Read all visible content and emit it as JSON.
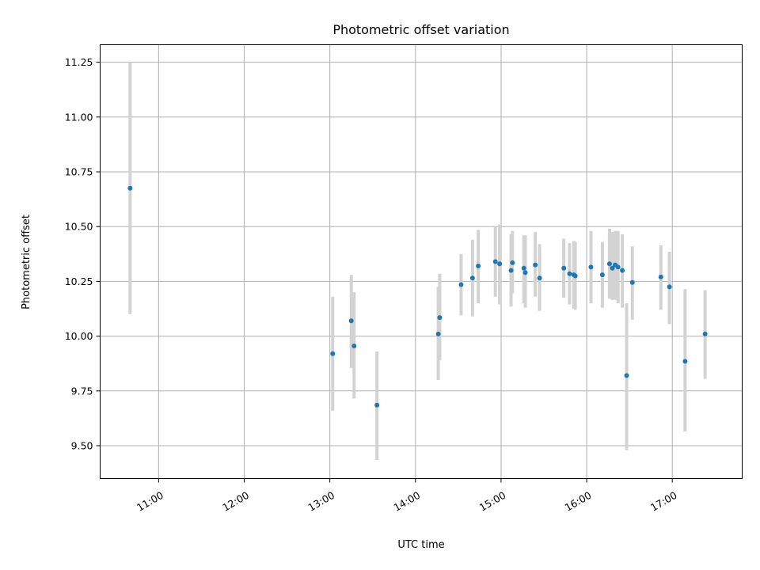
{
  "chart_data": {
    "type": "scatter",
    "title": "Photometric offset variation",
    "xlabel": "UTC time",
    "ylabel": "Photometric offset",
    "x_ticks": [
      "11:00",
      "12:00",
      "13:00",
      "14:00",
      "15:00",
      "16:00",
      "17:00"
    ],
    "y_ticks": [
      "9.50",
      "9.75",
      "10.00",
      "10.25",
      "10.50",
      "10.75",
      "11.00",
      "11.25"
    ],
    "xlim": [
      "10:19",
      "17:49"
    ],
    "ylim": [
      9.35,
      11.33
    ],
    "grid": true,
    "point_color": "#1f77b4",
    "errorbar_color": "#d3d3d3",
    "points": [
      {
        "t": "10:40",
        "y": 10.675,
        "lo": 10.1,
        "hi": 11.25
      },
      {
        "t": "13:02",
        "y": 9.92,
        "lo": 9.66,
        "hi": 10.18
      },
      {
        "t": "13:15",
        "y": 10.07,
        "lo": 9.855,
        "hi": 10.28
      },
      {
        "t": "13:17",
        "y": 9.955,
        "lo": 9.715,
        "hi": 10.2
      },
      {
        "t": "13:33",
        "y": 9.685,
        "lo": 9.435,
        "hi": 9.93
      },
      {
        "t": "14:16",
        "y": 10.01,
        "lo": 9.8,
        "hi": 10.225
      },
      {
        "t": "14:17",
        "y": 10.085,
        "lo": 9.89,
        "hi": 10.285
      },
      {
        "t": "14:32",
        "y": 10.235,
        "lo": 10.095,
        "hi": 10.375
      },
      {
        "t": "14:40",
        "y": 10.265,
        "lo": 10.09,
        "hi": 10.44
      },
      {
        "t": "14:44",
        "y": 10.32,
        "lo": 10.15,
        "hi": 10.485
      },
      {
        "t": "14:56",
        "y": 10.34,
        "lo": 10.18,
        "hi": 10.5
      },
      {
        "t": "14:59",
        "y": 10.33,
        "lo": 10.145,
        "hi": 10.51
      },
      {
        "t": "15:07",
        "y": 10.3,
        "lo": 10.135,
        "hi": 10.465
      },
      {
        "t": "15:08",
        "y": 10.335,
        "lo": 10.195,
        "hi": 10.48
      },
      {
        "t": "15:16",
        "y": 10.31,
        "lo": 10.15,
        "hi": 10.46
      },
      {
        "t": "15:17",
        "y": 10.29,
        "lo": 10.13,
        "hi": 10.46
      },
      {
        "t": "15:24",
        "y": 10.325,
        "lo": 10.18,
        "hi": 10.475
      },
      {
        "t": "15:27",
        "y": 10.265,
        "lo": 10.115,
        "hi": 10.42
      },
      {
        "t": "15:44",
        "y": 10.31,
        "lo": 10.175,
        "hi": 10.445
      },
      {
        "t": "15:48",
        "y": 10.285,
        "lo": 10.145,
        "hi": 10.425
      },
      {
        "t": "15:51",
        "y": 10.28,
        "lo": 10.125,
        "hi": 10.435
      },
      {
        "t": "15:52",
        "y": 10.275,
        "lo": 10.12,
        "hi": 10.43
      },
      {
        "t": "16:03",
        "y": 10.315,
        "lo": 10.15,
        "hi": 10.48
      },
      {
        "t": "16:11",
        "y": 10.28,
        "lo": 10.13,
        "hi": 10.43
      },
      {
        "t": "16:16",
        "y": 10.33,
        "lo": 10.17,
        "hi": 10.49
      },
      {
        "t": "16:18",
        "y": 10.31,
        "lo": 10.165,
        "hi": 10.475
      },
      {
        "t": "16:20",
        "y": 10.325,
        "lo": 10.165,
        "hi": 10.48
      },
      {
        "t": "16:22",
        "y": 10.315,
        "lo": 10.15,
        "hi": 10.48
      },
      {
        "t": "16:25",
        "y": 10.3,
        "lo": 10.13,
        "hi": 10.465
      },
      {
        "t": "16:28",
        "y": 9.82,
        "lo": 9.48,
        "hi": 10.15
      },
      {
        "t": "16:32",
        "y": 10.245,
        "lo": 10.075,
        "hi": 10.41
      },
      {
        "t": "16:52",
        "y": 10.27,
        "lo": 10.12,
        "hi": 10.415
      },
      {
        "t": "16:58",
        "y": 10.225,
        "lo": 10.055,
        "hi": 10.385
      },
      {
        "t": "17:09",
        "y": 9.885,
        "lo": 9.565,
        "hi": 10.215
      },
      {
        "t": "17:23",
        "y": 10.01,
        "lo": 9.805,
        "hi": 10.21
      }
    ]
  }
}
